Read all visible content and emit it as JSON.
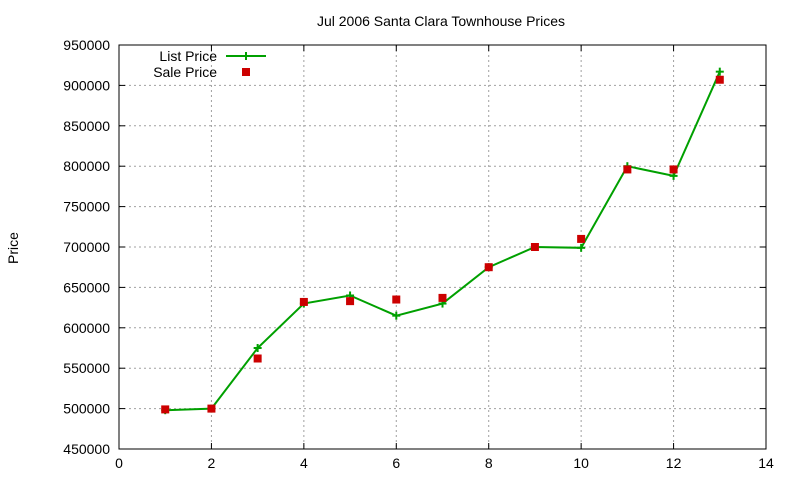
{
  "chart_data": {
    "type": "line",
    "title": "Jul 2006 Santa Clara Townhouse Prices",
    "xlabel": "",
    "ylabel": "Price",
    "xlim": [
      0,
      14
    ],
    "ylim": [
      450000,
      950000
    ],
    "x_ticks": [
      0,
      2,
      4,
      6,
      8,
      10,
      12,
      14
    ],
    "y_ticks": [
      450000,
      500000,
      550000,
      600000,
      650000,
      700000,
      750000,
      800000,
      850000,
      900000,
      950000
    ],
    "grid": true,
    "legend_position": "top-left",
    "series": [
      {
        "name": "List Price",
        "style": "line-with-plus-markers",
        "color": "#00a000",
        "x": [
          1,
          2,
          3,
          4,
          5,
          6,
          7,
          8,
          9,
          10,
          11,
          12,
          13
        ],
        "y": [
          498000,
          500000,
          575000,
          630000,
          640000,
          615000,
          630000,
          675000,
          700000,
          699000,
          800000,
          788000,
          917000
        ]
      },
      {
        "name": "Sale Price",
        "style": "square-markers",
        "color": "#cc0000",
        "x": [
          1,
          2,
          3,
          4,
          5,
          6,
          7,
          8,
          9,
          10,
          11,
          12,
          13
        ],
        "y": [
          499000,
          500000,
          562000,
          632000,
          633000,
          635000,
          637000,
          675000,
          700000,
          710000,
          796000,
          796000,
          907000
        ]
      }
    ]
  }
}
